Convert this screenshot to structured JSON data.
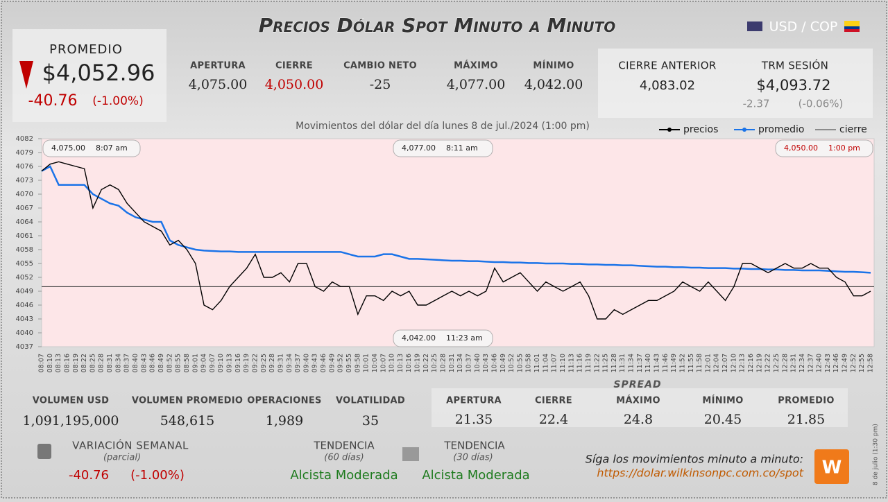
{
  "header": {
    "title": "Precios Dólar Spot Minuto a Minuto",
    "pair": "USD / COP"
  },
  "promedio": {
    "label": "PROMEDIO",
    "value": "$4,052.96",
    "change": "-40.76",
    "change_pct": "(-1.00%)"
  },
  "market": [
    {
      "label": "APERTURA",
      "value": "4,075.00"
    },
    {
      "label": "CIERRE",
      "value": "4,050.00"
    },
    {
      "label": "CAMBIO NETO",
      "value": "-25"
    },
    {
      "label": "MÁXIMO",
      "value": "4,077.00"
    },
    {
      "label": "MÍNIMO",
      "value": "4,042.00"
    }
  ],
  "previous": {
    "label": "CIERRE ANTERIOR",
    "value": "4,083.02"
  },
  "trm": {
    "label": "TRM SESIÓN",
    "value": "$4,093.72",
    "change": "-2.37",
    "change_pct": "(-0.06%)"
  },
  "chart_data": {
    "type": "line",
    "title": "Movimientos del dólar del día lunes 8 de jul./2024 (1:00 pm)",
    "categories": [
      "08:07",
      "08:10",
      "08:13",
      "08:16",
      "08:19",
      "08:22",
      "08:25",
      "08:28",
      "08:31",
      "08:34",
      "08:37",
      "08:40",
      "08:43",
      "08:46",
      "08:49",
      "08:52",
      "08:55",
      "08:58",
      "09:01",
      "09:04",
      "09:07",
      "09:10",
      "09:13",
      "09:16",
      "09:19",
      "09:22",
      "09:25",
      "09:28",
      "09:31",
      "09:34",
      "09:37",
      "09:40",
      "09:43",
      "09:46",
      "09:49",
      "09:52",
      "09:55",
      "09:58",
      "10:01",
      "10:04",
      "10:07",
      "10:10",
      "10:13",
      "10:16",
      "10:19",
      "10:22",
      "10:25",
      "10:28",
      "10:31",
      "10:34",
      "10:37",
      "10:40",
      "10:43",
      "10:46",
      "10:49",
      "10:52",
      "10:55",
      "10:58",
      "11:01",
      "11:04",
      "11:07",
      "11:10",
      "11:13",
      "11:16",
      "11:19",
      "11:22",
      "11:25",
      "11:28",
      "11:31",
      "11:34",
      "11:37",
      "11:40",
      "11:43",
      "11:46",
      "11:49",
      "11:52",
      "11:55",
      "11:58",
      "12:01",
      "12:04",
      "12:07",
      "12:10",
      "12:13",
      "12:16",
      "12:19",
      "12:22",
      "12:25",
      "12:28",
      "12:31",
      "12:34",
      "12:37",
      "12:40",
      "12:43",
      "12:46",
      "12:49",
      "12:52",
      "12:55",
      "12:58"
    ],
    "series": [
      {
        "name": "precios",
        "color": "#000000",
        "values": [
          4075,
          4076.5,
          4077,
          4076.5,
          4076,
          4075.5,
          4067,
          4071,
          4072,
          4071,
          4068,
          4066,
          4064,
          4063,
          4062,
          4059,
          4060,
          4058,
          4055,
          4046,
          4045,
          4047,
          4050,
          4052,
          4054,
          4057,
          4052,
          4052,
          4053,
          4051,
          4055,
          4055,
          4050,
          4049,
          4051,
          4050,
          4050,
          4044,
          4048,
          4048,
          4047,
          4049,
          4048,
          4049,
          4046,
          4046,
          4047,
          4048,
          4049,
          4048,
          4049,
          4048,
          4049,
          4054,
          4051,
          4052,
          4053,
          4051,
          4049,
          4051,
          4050,
          4049,
          4050,
          4051,
          4048,
          4043,
          4043,
          4045,
          4044,
          4045,
          4046,
          4047,
          4047,
          4048,
          4049,
          4051,
          4050,
          4049,
          4051,
          4049,
          4047,
          4050,
          4055,
          4055,
          4054,
          4053,
          4054,
          4055,
          4054,
          4054,
          4055,
          4054,
          4054,
          4052,
          4051,
          4048,
          4048,
          4049
        ]
      },
      {
        "name": "promedio",
        "color": "#1a73e8",
        "values": [
          4075,
          4076,
          4072,
          4072,
          4072,
          4072,
          4070,
          4069,
          4068,
          4067.5,
          4066,
          4065,
          4064.5,
          4064,
          4064,
          4060,
          4059,
          4058.5,
          4058,
          4057.8,
          4057.7,
          4057.6,
          4057.6,
          4057.5,
          4057.5,
          4057.5,
          4057.5,
          4057.5,
          4057.5,
          4057.5,
          4057.5,
          4057.5,
          4057.5,
          4057.5,
          4057.5,
          4057.5,
          4057,
          4056.5,
          4056.5,
          4056.5,
          4057,
          4057,
          4056.5,
          4056,
          4056,
          4055.9,
          4055.8,
          4055.7,
          4055.6,
          4055.6,
          4055.5,
          4055.5,
          4055.4,
          4055.3,
          4055.3,
          4055.2,
          4055.2,
          4055.1,
          4055.1,
          4055,
          4055,
          4055,
          4054.9,
          4054.9,
          4054.8,
          4054.8,
          4054.7,
          4054.7,
          4054.6,
          4054.6,
          4054.5,
          4054.4,
          4054.3,
          4054.3,
          4054.2,
          4054.2,
          4054.1,
          4054.1,
          4054,
          4054,
          4054,
          4053.9,
          4053.9,
          4053.8,
          4053.8,
          4053.7,
          4053.7,
          4053.6,
          4053.6,
          4053.5,
          4053.5,
          4053.5,
          4053.4,
          4053.3,
          4053.2,
          4053.2,
          4053.1,
          4053
        ]
      }
    ],
    "hline": {
      "name": "cierre",
      "value": 4050,
      "color": "#333333"
    },
    "ylim": [
      4037,
      4082
    ],
    "yticks": [
      4037,
      4040,
      4043,
      4046,
      4049,
      4052,
      4055,
      4058,
      4061,
      4064,
      4067,
      4070,
      4073,
      4076,
      4079,
      4082
    ],
    "annotations": [
      {
        "value": "4,075.00",
        "time": "8:07 am"
      },
      {
        "value": "4,077.00",
        "time": "8:11 am"
      },
      {
        "value": "4,050.00",
        "time": "1:00 pm"
      },
      {
        "value": "4,042.00",
        "time": "11:23 am"
      }
    ]
  },
  "volume": [
    {
      "label": "VOLUMEN USD",
      "value": "1,091,195,000"
    },
    {
      "label": "VOLUMEN PROMEDIO",
      "value": "548,615"
    },
    {
      "label": "OPERACIONES",
      "value": "1,989"
    },
    {
      "label": "VOLATILIDAD",
      "value": "35"
    }
  ],
  "spread": {
    "title": "SPREAD",
    "items": [
      {
        "label": "APERTURA",
        "value": "21.35"
      },
      {
        "label": "CIERRE",
        "value": "22.4"
      },
      {
        "label": "MÁXIMO",
        "value": "24.8"
      },
      {
        "label": "MÍNIMO",
        "value": "20.45"
      },
      {
        "label": "PROMEDIO",
        "value": "21.85"
      }
    ]
  },
  "weekly": {
    "label": "VARIACIÓN SEMANAL",
    "note": "(parcial)",
    "change": "-40.76",
    "change_pct": "(-1.00%)"
  },
  "trend": [
    {
      "label": "TENDENCIA",
      "note": "(60 días)",
      "value": "Alcista Moderada"
    },
    {
      "label": "TENDENCIA",
      "note": "(30 días)",
      "value": "Alcista Moderada"
    }
  ],
  "footer": {
    "text": "Síga los movimientos minuto a minuto:",
    "url": "https://dolar.wilkinsonpc.com.co/spot",
    "stamp": "8 de julio (1:30 pm)"
  }
}
